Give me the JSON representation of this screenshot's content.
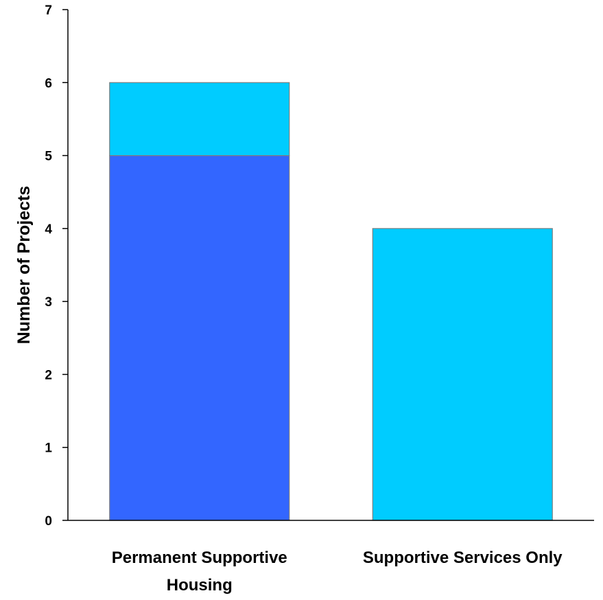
{
  "chart_data": {
    "type": "bar",
    "stacked": true,
    "title": "",
    "xlabel": "",
    "ylabel": "Number of Projects",
    "ylim": [
      0,
      7
    ],
    "yticks": [
      "0",
      "1",
      "2",
      "3",
      "4",
      "5",
      "6",
      "7"
    ],
    "categories": [
      [
        "Permanent Supportive",
        "Housing"
      ],
      [
        "Supportive Services Only"
      ]
    ],
    "series": [
      {
        "color": "#3366ff",
        "values": [
          5,
          0
        ]
      },
      {
        "color": "#00ccff",
        "values": [
          1,
          4
        ]
      }
    ],
    "grid": false,
    "legend": "none"
  }
}
